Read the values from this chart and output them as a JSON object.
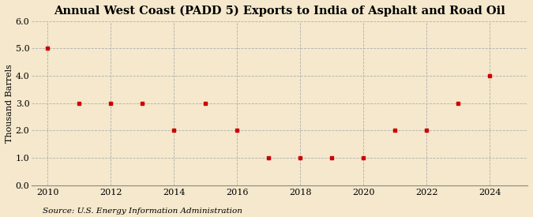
{
  "title": "Annual West Coast (PADD 5) Exports to India of Asphalt and Road Oil",
  "ylabel": "Thousand Barrels",
  "source": "Source: U.S. Energy Information Administration",
  "background_color": "#f5e8cc",
  "plot_background_color": "#f5e8cc",
  "x": [
    2010,
    2011,
    2012,
    2013,
    2014,
    2015,
    2016,
    2017,
    2018,
    2019,
    2020,
    2021,
    2022,
    2023,
    2024
  ],
  "y": [
    5.0,
    3.0,
    3.0,
    3.0,
    2.0,
    3.0,
    2.0,
    1.0,
    1.0,
    1.0,
    1.0,
    2.0,
    2.0,
    3.0,
    4.0
  ],
  "marker_color": "#cc0000",
  "marker": "s",
  "marker_size": 3.5,
  "ylim": [
    0.0,
    6.0
  ],
  "yticks": [
    0.0,
    1.0,
    2.0,
    3.0,
    4.0,
    5.0,
    6.0
  ],
  "xlim": [
    2009.5,
    2025.2
  ],
  "xticks": [
    2010,
    2012,
    2014,
    2016,
    2018,
    2020,
    2022,
    2024
  ],
  "title_fontsize": 10.5,
  "axis_fontsize": 8,
  "source_fontsize": 7.5,
  "grid_color": "#b0b0b0",
  "grid_linestyle": "--",
  "grid_linewidth": 0.6
}
